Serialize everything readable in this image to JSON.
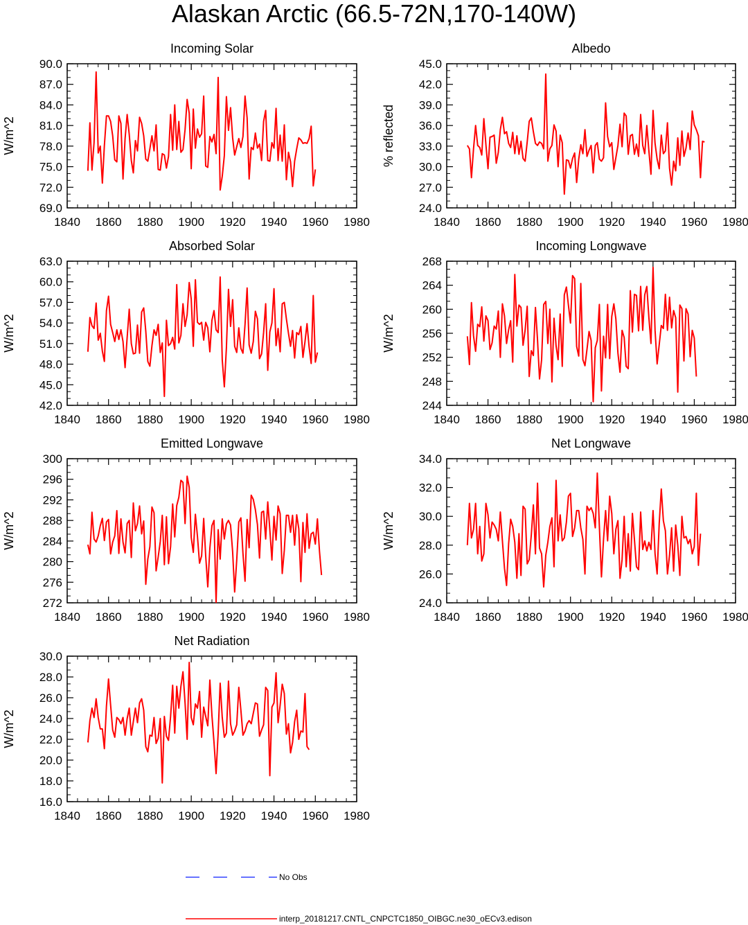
{
  "title": "Alaskan Arctic (66.5-72N,170-140W)",
  "colors": {
    "model": "#ff0000",
    "obs": "#3344ff",
    "axis": "#000000"
  },
  "x_axis": {
    "range": [
      1840,
      1980
    ],
    "ticks": [
      1840,
      1860,
      1880,
      1900,
      1920,
      1940,
      1960,
      1980
    ],
    "tick_labels": [
      "1840",
      "1860",
      "1880",
      "1900",
      "1920",
      "1940",
      "1960",
      "1980"
    ]
  },
  "legend": {
    "obs_label": "No Obs",
    "model_label": "interp_20181217.CNTL_CNPCTC1850_OIBGC.ne30_oECv3.edison"
  },
  "chart_data": [
    {
      "type": "line",
      "title": "Incoming Solar",
      "ylabel": "W/m^2",
      "ylim": [
        69,
        90
      ],
      "yticks": [
        69,
        72,
        75,
        78,
        81,
        84,
        87,
        90
      ],
      "ytick_labels": [
        "69.0",
        "72.0",
        "75.0",
        "78.0",
        "81.0",
        "84.0",
        "87.0",
        "90.0"
      ],
      "x_start": 1850,
      "series": [
        {
          "name": "model",
          "values": [
            74.4,
            81.4,
            74.5,
            78.5,
            88.8,
            77.0,
            78.0,
            72.6,
            78.1,
            82.4,
            82.4,
            81.6,
            79.5,
            76.0,
            75.7,
            82.4,
            81.3,
            73.2,
            79.1,
            82.6,
            79.7,
            75.9,
            74.1,
            78.8,
            77.3,
            82.2,
            81.3,
            79.5,
            76.1,
            75.8,
            77.6,
            79.5,
            77.3,
            81.1,
            74.6,
            74.5,
            76.9,
            76.7,
            74.8,
            76.5,
            82.6,
            77.4,
            84.0,
            77.5,
            81.6,
            77.1,
            77.5,
            80.4,
            84.8,
            82.8,
            74.7,
            83.4,
            77.7,
            80.5,
            79.3,
            79.8,
            85.3,
            75.1,
            74.9,
            79.4,
            78.6,
            79.7,
            76.9,
            88.0,
            71.6,
            73.6,
            76.6,
            85.2,
            80.3,
            83.6,
            79.2,
            76.7,
            77.9,
            79.1,
            77.8,
            79.4,
            85.3,
            82.1,
            73.2,
            77.8,
            77.5,
            79.9,
            77.7,
            78.3,
            75.9,
            81.6,
            83.2,
            75.9,
            75.8,
            78.5,
            77.7,
            83.5,
            75.9,
            79.6,
            75.8,
            81.1,
            73.1,
            77.1,
            75.7,
            72.1,
            75.8,
            77.6,
            79.2,
            78.9,
            78.4,
            78.5,
            78.4,
            79.1,
            80.9,
            72.2,
            74.6
          ]
        }
      ]
    },
    {
      "type": "line",
      "title": "Albedo",
      "ylabel": "% reflected",
      "ylim": [
        24,
        45
      ],
      "yticks": [
        24,
        27,
        30,
        33,
        36,
        39,
        42,
        45
      ],
      "ytick_labels": [
        "24.0",
        "27.0",
        "30.0",
        "33.0",
        "36.0",
        "39.0",
        "42.0",
        "45.0"
      ],
      "x_start": 1850,
      "series": [
        {
          "name": "model",
          "values": [
            33.1,
            32.6,
            28.4,
            32.6,
            36.0,
            33.1,
            32.8,
            31.7,
            37.0,
            33.2,
            29.7,
            34.3,
            34.4,
            34.6,
            30.5,
            32.1,
            35.4,
            37.2,
            34.8,
            35.1,
            33.4,
            32.8,
            35.0,
            31.9,
            34.5,
            31.8,
            33.7,
            31.2,
            30.8,
            33.6,
            36.6,
            37.1,
            35.1,
            33.4,
            33.1,
            33.6,
            33.4,
            32.6,
            43.5,
            30.8,
            32.6,
            33.1,
            36.1,
            35.2,
            30.0,
            34.6,
            33.5,
            26.0,
            31.0,
            30.9,
            29.8,
            31.2,
            32.0,
            27.7,
            31.1,
            33.2,
            31.9,
            35.4,
            31.5,
            32.4,
            33.1,
            29.1,
            33.1,
            33.5,
            31.1,
            30.8,
            31.3,
            39.3,
            34.4,
            32.9,
            33.5,
            29.6,
            31.3,
            33.1,
            36.2,
            32.9,
            37.8,
            37.4,
            31.8,
            34.5,
            34.7,
            31.8,
            33.3,
            31.5,
            37.6,
            33.1,
            31.9,
            36.0,
            32.3,
            28.9,
            38.2,
            33.4,
            31.1,
            29.7,
            34.6,
            31.9,
            32.3,
            36.4,
            29.8,
            27.3,
            30.8,
            29.4,
            34.2,
            30.2,
            35.2,
            31.5,
            32.7,
            34.9,
            32.5,
            38.1,
            36.1,
            35.4,
            34.5,
            28.4,
            33.7,
            33.6
          ]
        }
      ]
    },
    {
      "type": "line",
      "title": "Absorbed Solar",
      "ylabel": "W/m^2",
      "ylim": [
        42,
        63
      ],
      "yticks": [
        42,
        45,
        48,
        51,
        54,
        57,
        60,
        63
      ],
      "ytick_labels": [
        "42.0",
        "45.0",
        "48.0",
        "51.0",
        "54.0",
        "57.0",
        "60.0",
        "63.0"
      ],
      "x_start": 1850,
      "series": [
        {
          "name": "model",
          "values": [
            49.8,
            54.8,
            53.6,
            53.2,
            56.9,
            51.5,
            52.5,
            49.9,
            48.4,
            55.8,
            57.9,
            53.8,
            52.6,
            51.3,
            53.0,
            51.6,
            53.0,
            51.3,
            47.5,
            51.9,
            56.0,
            51.0,
            49.5,
            49.6,
            53.7,
            49.6,
            55.6,
            56.2,
            52.8,
            48.4,
            47.7,
            50.7,
            53.0,
            52.2,
            53.8,
            49.7,
            51.1,
            43.3,
            54.4,
            50.7,
            51.0,
            51.9,
            50.2,
            59.6,
            51.1,
            52.2,
            56.8,
            53.5,
            55.2,
            59.9,
            57.5,
            50.6,
            60.3,
            54.1,
            53.8,
            54.1,
            51.5,
            54.1,
            53.3,
            49.8,
            54.4,
            55.8,
            53.0,
            52.6,
            60.7,
            48.6,
            44.7,
            50.4,
            58.9,
            53.5,
            57.4,
            50.6,
            49.7,
            53.3,
            50.3,
            49.6,
            53.8,
            59.1,
            50.8,
            49.6,
            51.3,
            55.7,
            54.6,
            48.8,
            49.5,
            52.6,
            56.8,
            47.1,
            52.7,
            54.0,
            59.0,
            50.7,
            53.2,
            49.8,
            56.8,
            57.0,
            54.6,
            52.5,
            50.6,
            52.9,
            48.9,
            52.6,
            52.3,
            53.5,
            49.0,
            51.3,
            53.9,
            50.5,
            48.1,
            58.0,
            48.3,
            49.7
          ]
        }
      ]
    },
    {
      "type": "line",
      "title": "Incoming Longwave",
      "ylabel": "W/m^2",
      "ylim": [
        244,
        268
      ],
      "yticks": [
        244,
        248,
        252,
        256,
        260,
        264,
        268
      ],
      "ytick_labels": [
        "244",
        "248",
        "252",
        "256",
        "260",
        "264",
        "268"
      ],
      "x_start": 1850,
      "series": [
        {
          "name": "model",
          "values": [
            255.5,
            250.8,
            261.1,
            255.6,
            253.0,
            257.5,
            257.1,
            260.4,
            254.7,
            258.9,
            258.1,
            253.3,
            254.4,
            257.2,
            256.7,
            259.7,
            252.0,
            260.9,
            258.9,
            254.3,
            256.6,
            258.1,
            251.2,
            265.8,
            257.2,
            260.7,
            260.3,
            254.0,
            256.5,
            260.5,
            248.8,
            253.1,
            252.3,
            260.3,
            254.9,
            248.4,
            251.6,
            260.8,
            261.3,
            254.3,
            260.0,
            247.9,
            258.5,
            253.9,
            251.6,
            259.2,
            250.5,
            262.4,
            263.7,
            260.7,
            257.7,
            265.6,
            265.1,
            253.8,
            252.2,
            264.3,
            251.6,
            250.6,
            253.3,
            256.3,
            254.8,
            244.6,
            253.6,
            254.8,
            260.8,
            246.4,
            255.5,
            251.9,
            260.8,
            251.8,
            258.8,
            260.9,
            258.4,
            252.7,
            249.5,
            256.5,
            255.3,
            250.5,
            250.1,
            263.1,
            256.2,
            262.5,
            262.3,
            256.4,
            263.8,
            256.5,
            262.4,
            263.8,
            258.6,
            254.3,
            267.0,
            256.5,
            250.9,
            254.1,
            257.3,
            256.8,
            262.5,
            256.5,
            262.0,
            256.9,
            259.8,
            258.6,
            246.2,
            260.7,
            260.1,
            251.4,
            260.1,
            259.2,
            252.1,
            256.5,
            255.2,
            248.8
          ]
        }
      ]
    },
    {
      "type": "line",
      "title": "Emitted Longwave",
      "ylabel": "W/m^2",
      "ylim": [
        272,
        300
      ],
      "yticks": [
        272,
        276,
        280,
        284,
        288,
        292,
        296,
        300
      ],
      "ytick_labels": [
        "272",
        "276",
        "280",
        "284",
        "288",
        "292",
        "296",
        "300"
      ],
      "x_start": 1850,
      "series": [
        {
          "name": "model",
          "values": [
            283.3,
            281.5,
            289.6,
            284.4,
            283.8,
            285.0,
            287.0,
            288.4,
            284.1,
            287.7,
            288.2,
            281.5,
            283.8,
            285.0,
            289.9,
            281.6,
            288.3,
            283.8,
            281.7,
            287.4,
            288.0,
            280.8,
            291.4,
            286.0,
            287.4,
            290.8,
            285.4,
            287.9,
            275.6,
            280.5,
            282.9,
            290.6,
            289.5,
            278.2,
            280.9,
            283.9,
            289.0,
            279.4,
            288.7,
            279.6,
            282.9,
            291.2,
            284.8,
            290.9,
            292.5,
            295.8,
            295.4,
            287.4,
            296.6,
            294.4,
            284.7,
            281.8,
            289.2,
            284.9,
            279.7,
            281.1,
            288.4,
            281.1,
            275.1,
            282.6,
            287.0,
            288.0,
            272.1,
            286.2,
            280.5,
            288.3,
            284.4,
            287.3,
            288.0,
            287.1,
            281.9,
            274.1,
            280.3,
            287.7,
            288.5,
            281.6,
            276.2,
            288.2,
            282.7,
            292.9,
            292.1,
            290.1,
            287.2,
            280.7,
            289.6,
            289.8,
            284.4,
            291.6,
            286.2,
            280.3,
            288.8,
            284.2,
            290.8,
            289.3,
            277.7,
            282.2,
            289.0,
            289.0,
            285.7,
            289.0,
            283.2,
            289.1,
            286.4,
            276.1,
            287.6,
            281.8,
            289.3,
            282.6,
            285.4,
            285.7,
            283.4,
            288.3,
            282.0,
            277.4
          ]
        }
      ]
    },
    {
      "type": "line",
      "title": "Net Longwave",
      "ylabel": "W/m^2",
      "ylim": [
        24,
        34
      ],
      "yticks": [
        24,
        26,
        28,
        30,
        32,
        34
      ],
      "ytick_labels": [
        "24.0",
        "26.0",
        "28.0",
        "30.0",
        "32.0",
        "34.0"
      ],
      "x_start": 1850,
      "series": [
        {
          "name": "model",
          "values": [
            28.0,
            30.9,
            28.5,
            29.1,
            30.9,
            27.4,
            29.3,
            26.9,
            27.4,
            30.9,
            30.1,
            28.5,
            29.6,
            29.4,
            29.1,
            28.3,
            30.3,
            28.3,
            26.4,
            25.2,
            28.1,
            29.8,
            29.3,
            28.2,
            25.7,
            28.8,
            25.9,
            30.7,
            30.5,
            26.7,
            27.0,
            28.7,
            30.8,
            27.4,
            32.3,
            27.8,
            27.4,
            25.1,
            27.3,
            28.2,
            29.3,
            29.9,
            26.5,
            32.5,
            28.3,
            30.1,
            28.3,
            28.5,
            29.6,
            31.4,
            31.6,
            28.6,
            29.2,
            30.4,
            30.4,
            29.2,
            28.4,
            26.0,
            30.7,
            30.4,
            30.6,
            30.2,
            29.2,
            33.0,
            29.3,
            25.8,
            28.4,
            30.4,
            28.3,
            31.4,
            30.2,
            27.4,
            29.1,
            29.7,
            25.7,
            27.0,
            30.0,
            26.5,
            28.8,
            26.2,
            30.2,
            28.4,
            26.5,
            26.3,
            30.3,
            27.7,
            28.3,
            27.6,
            28.2,
            27.7,
            30.4,
            27.4,
            26.0,
            29.5,
            31.9,
            29.7,
            29.0,
            26.0,
            27.3,
            29.2,
            26.2,
            29.4,
            28.0,
            25.9,
            30.0,
            28.5,
            28.6,
            28.1,
            28.4,
            27.4,
            27.9,
            31.6,
            26.6,
            28.8
          ]
        }
      ]
    },
    {
      "type": "line",
      "title": "Net Radiation",
      "ylabel": "W/m^2",
      "ylim": [
        16,
        30
      ],
      "yticks": [
        16,
        18,
        20,
        22,
        24,
        26,
        28,
        30
      ],
      "ytick_labels": [
        "16.0",
        "18.0",
        "20.0",
        "22.0",
        "24.0",
        "26.0",
        "28.0",
        "30.0"
      ],
      "x_start": 1850,
      "series": [
        {
          "name": "model",
          "values": [
            21.7,
            23.8,
            25.0,
            24.1,
            25.9,
            24.1,
            23.0,
            23.0,
            21.1,
            25.2,
            27.8,
            25.3,
            22.9,
            22.2,
            24.1,
            23.9,
            23.5,
            24.1,
            22.4,
            24.0,
            25.0,
            22.4,
            23.7,
            25.0,
            23.6,
            25.5,
            25.9,
            24.8,
            21.3,
            20.8,
            22.4,
            22.3,
            24.1,
            21.6,
            22.1,
            24.0,
            17.8,
            24.2,
            22.3,
            21.9,
            24.2,
            27.2,
            22.6,
            27.1,
            25.0,
            27.1,
            28.5,
            25.5,
            22.0,
            29.4,
            24.1,
            23.4,
            25.4,
            25.0,
            26.6,
            22.2,
            25.1,
            24.2,
            23.3,
            27.7,
            24.3,
            21.7,
            18.7,
            22.6,
            27.4,
            24.1,
            22.2,
            22.6,
            27.6,
            23.5,
            22.4,
            22.8,
            23.4,
            27.0,
            24.8,
            22.4,
            22.8,
            23.5,
            23.8,
            23.5,
            24.5,
            25.5,
            25.4,
            22.3,
            22.9,
            23.4,
            27.0,
            26.7,
            18.5,
            25.1,
            25.5,
            28.4,
            23.6,
            25.3,
            27.3,
            26.4,
            22.5,
            23.5,
            20.7,
            21.7,
            23.7,
            24.8,
            22.0,
            22.8,
            22.7,
            26.4,
            21.3,
            21.0
          ]
        }
      ]
    }
  ]
}
